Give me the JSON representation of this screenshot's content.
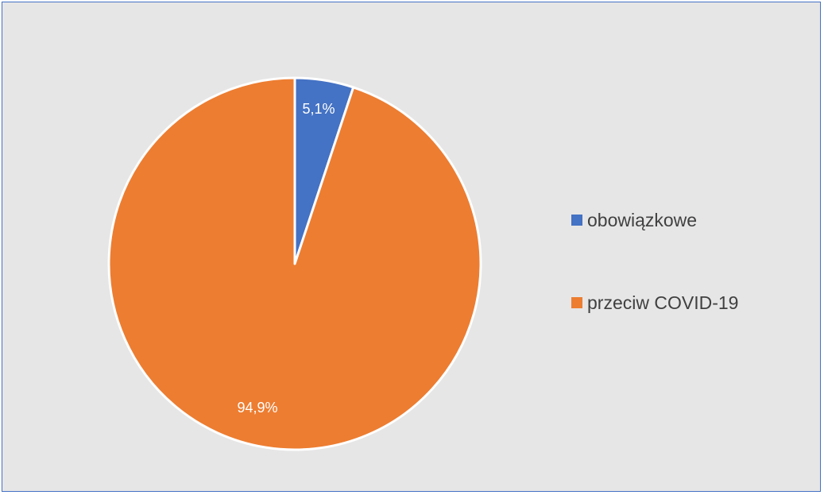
{
  "chart_data": {
    "type": "pie",
    "title": "",
    "start_angle_deg": 0,
    "direction": "clockwise",
    "legend_position": "right",
    "slices": [
      {
        "name": "obowiązkowe",
        "value": 5.1,
        "label": "5,1%",
        "color": "#4472c4"
      },
      {
        "name": "przeciw COVID-19",
        "value": 94.9,
        "label": "94,9%",
        "color": "#ed7d31"
      }
    ]
  }
}
